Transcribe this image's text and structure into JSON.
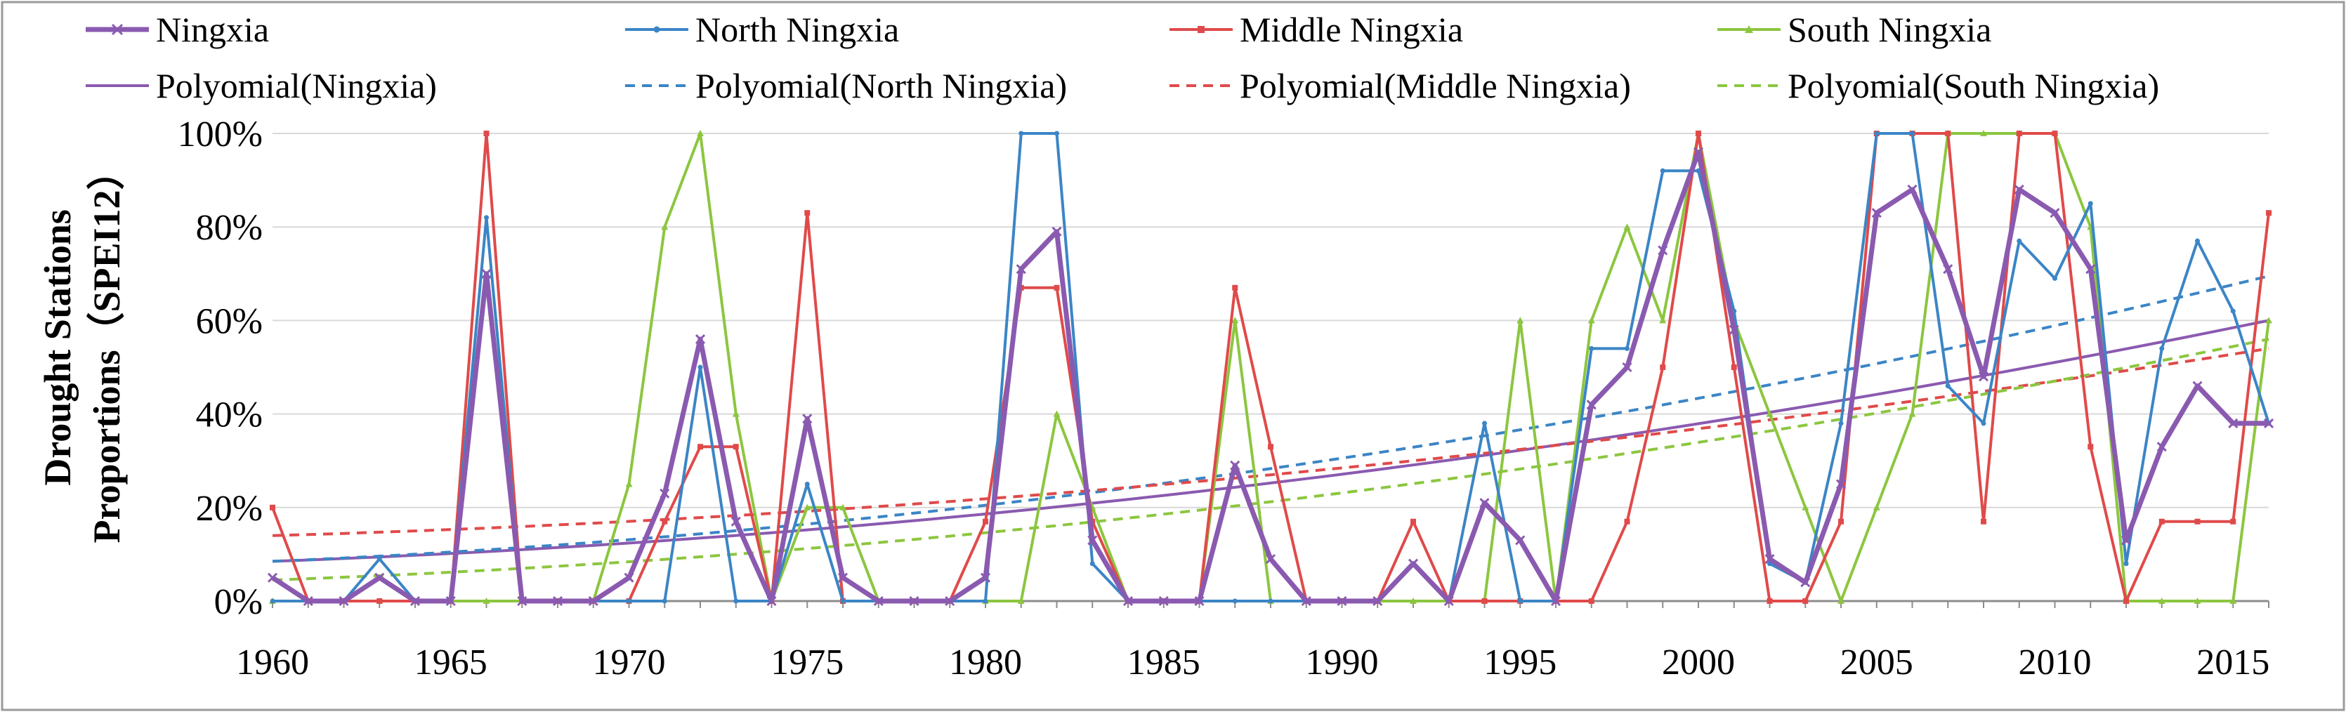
{
  "chart_data": {
    "type": "line",
    "title": "",
    "xlabel": "",
    "ylabel_line1": "Drought Stations",
    "ylabel_line2": "Proportions（SPEI12）",
    "xlim": [
      1960,
      2016
    ],
    "ylim": [
      0,
      100
    ],
    "x_ticks": [
      1960,
      1965,
      1970,
      1975,
      1980,
      1985,
      1990,
      1995,
      2000,
      2005,
      2010,
      2015
    ],
    "x_tick_labels": [
      "1960",
      "1965",
      "1970",
      "1975",
      "1980",
      "1985",
      "1990",
      "1995",
      "2000",
      "2005",
      "2010",
      "2015"
    ],
    "y_ticks": [
      0,
      20,
      40,
      60,
      80,
      100
    ],
    "y_tick_labels": [
      "0%",
      "20%",
      "40%",
      "60%",
      "80%",
      "100%"
    ],
    "legend_placement": "top",
    "years": [
      1960,
      1961,
      1962,
      1963,
      1964,
      1965,
      1966,
      1967,
      1968,
      1969,
      1970,
      1971,
      1972,
      1973,
      1974,
      1975,
      1976,
      1977,
      1978,
      1979,
      1980,
      1981,
      1982,
      1983,
      1984,
      1985,
      1986,
      1987,
      1988,
      1989,
      1990,
      1991,
      1992,
      1993,
      1994,
      1995,
      1996,
      1997,
      1998,
      1999,
      2000,
      2001,
      2002,
      2003,
      2004,
      2005,
      2006,
      2007,
      2008,
      2009,
      2010,
      2011,
      2012,
      2013,
      2014,
      2015,
      2016
    ],
    "series": [
      {
        "name": "Ningxia",
        "color": "#8a5ab0",
        "marker": "x",
        "kind": "data",
        "values": [
          5,
          0,
          0,
          5,
          0,
          0,
          70,
          0,
          0,
          0,
          5,
          23,
          56,
          17,
          0,
          39,
          5,
          0,
          0,
          0,
          5,
          71,
          79,
          13,
          0,
          0,
          0,
          29,
          9,
          0,
          0,
          0,
          8,
          0,
          21,
          13,
          0,
          42,
          50,
          75,
          96,
          58,
          9,
          4,
          25,
          83,
          88,
          71,
          48,
          88,
          83,
          71,
          13,
          33,
          46,
          38,
          38
        ]
      },
      {
        "name": "North Ningxia",
        "color": "#3b85c6",
        "marker": "dot",
        "kind": "data",
        "values": [
          0,
          0,
          0,
          9,
          0,
          0,
          82,
          0,
          0,
          0,
          0,
          0,
          50,
          0,
          0,
          25,
          0,
          0,
          0,
          0,
          0,
          100,
          100,
          8,
          0,
          0,
          0,
          0,
          0,
          0,
          0,
          0,
          8,
          0,
          38,
          0,
          0,
          54,
          54,
          92,
          92,
          62,
          8,
          4,
          38,
          100,
          100,
          46,
          38,
          77,
          69,
          85,
          8,
          54,
          77,
          62,
          38
        ]
      },
      {
        "name": "Middle Ningxia",
        "color": "#e04a4a",
        "marker": "square",
        "kind": "data",
        "values": [
          20,
          0,
          0,
          0,
          0,
          0,
          100,
          0,
          0,
          0,
          0,
          17,
          33,
          33,
          0,
          83,
          0,
          0,
          0,
          0,
          17,
          67,
          67,
          17,
          0,
          0,
          0,
          67,
          33,
          0,
          0,
          0,
          17,
          0,
          0,
          0,
          0,
          0,
          17,
          50,
          100,
          50,
          0,
          0,
          17,
          100,
          100,
          100,
          17,
          100,
          100,
          33,
          0,
          17,
          17,
          17,
          83
        ]
      },
      {
        "name": "South Ningxia",
        "color": "#8cc63f",
        "marker": "triangle",
        "kind": "data",
        "values": [
          0,
          0,
          0,
          0,
          0,
          0,
          0,
          0,
          0,
          0,
          25,
          80,
          100,
          40,
          0,
          20,
          20,
          0,
          0,
          0,
          0,
          0,
          40,
          20,
          0,
          0,
          0,
          60,
          0,
          0,
          0,
          0,
          0,
          0,
          0,
          60,
          0,
          60,
          80,
          60,
          100,
          60,
          40,
          20,
          0,
          20,
          40,
          100,
          100,
          100,
          100,
          80,
          0,
          0,
          0,
          0,
          60
        ]
      },
      {
        "name": "Polyomial(Ningxia)",
        "color": "#8a5ab0",
        "kind": "trend",
        "dash": false,
        "trend_start": 8.5,
        "trend_end": 60
      },
      {
        "name": "Polyomial(North Ningxia)",
        "color": "#3b85c6",
        "kind": "trend",
        "dash": true,
        "trend_start": 8.5,
        "trend_end": 69.5
      },
      {
        "name": "Polyomial(Middle Ningxia)",
        "color": "#e04a4a",
        "kind": "trend",
        "dash": true,
        "trend_start": 14,
        "trend_end": 54
      },
      {
        "name": "Polyomial(South Ningxia)",
        "color": "#8cc63f",
        "kind": "trend",
        "dash": true,
        "trend_start": 4.5,
        "trend_end": 56
      }
    ]
  }
}
